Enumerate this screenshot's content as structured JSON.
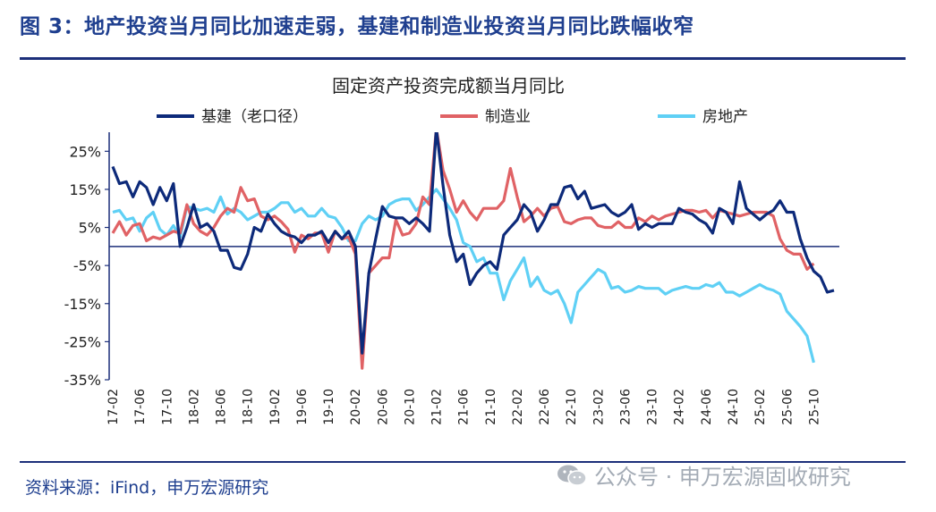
{
  "figure_title": "图 3：地产投资当月同比加速走弱，基建和制造业投资当月同比跌幅收窄",
  "source_text": "资料来源：iFind，申万宏源研究",
  "watermark_text": "公众号 · 申万宏源固收研究",
  "colors": {
    "infra": "#0d2a7a",
    "manufacturing": "#e06265",
    "realestate": "#5fd0f5",
    "accent": "#1f3f8f"
  },
  "chart_data": {
    "type": "line",
    "title": "固定资产投资完成额当月同比",
    "ylim": [
      -35,
      30
    ],
    "yticks": [
      25,
      15,
      5,
      -5,
      -15,
      -25,
      -35
    ],
    "ytick_labels": [
      "25%",
      "15%",
      "5%",
      "-5%",
      "-15%",
      "-25%",
      "-35%"
    ],
    "xtick_labels": [
      "17-02",
      "17-06",
      "17-10",
      "18-02",
      "18-06",
      "18-10",
      "19-02",
      "19-06",
      "19-10",
      "20-02",
      "20-06",
      "20-10",
      "21-02",
      "21-06",
      "21-10",
      "22-02",
      "22-06",
      "22-10",
      "23-02",
      "23-06",
      "23-10",
      "24-02",
      "24-06",
      "24-10",
      "25-02",
      "25-06",
      "25-10"
    ],
    "series": [
      {
        "name": "基建（老口径）",
        "color": "#0d2a7a",
        "values": [
          21,
          16.5,
          17,
          13,
          17,
          15.5,
          11,
          15.5,
          12,
          16.5,
          0,
          5,
          11,
          5,
          6,
          4,
          -1,
          -1,
          -5.5,
          -6,
          -2,
          5,
          4,
          8.5,
          6,
          4,
          3,
          2.5,
          1,
          3,
          3,
          4,
          1,
          4,
          2,
          4,
          0,
          -28,
          -7,
          2,
          10.5,
          8,
          7.5,
          7.5,
          6,
          7.5,
          6,
          4,
          31,
          16,
          3,
          -4,
          -2,
          -10,
          -7,
          -5,
          -4,
          -6,
          3,
          5,
          7,
          11,
          9,
          4,
          7,
          11,
          11,
          15.5,
          16,
          12.5,
          14.5,
          10,
          10.5,
          11,
          9,
          8,
          9,
          11,
          4.5,
          6,
          5,
          6,
          6,
          6,
          10,
          9,
          8.5,
          7,
          6,
          3.5,
          10,
          9,
          6,
          17,
          10,
          8.5,
          7,
          8.5,
          9.5,
          12,
          9,
          9,
          2,
          -3,
          -6.5,
          -8,
          -12,
          -11.5
        ]
      },
      {
        "name": "制造业",
        "color": "#e06265",
        "values": [
          3.5,
          6.5,
          3,
          5.5,
          6,
          1.5,
          2.5,
          2,
          3,
          4,
          3.5,
          11,
          6,
          4,
          3,
          5,
          8,
          10,
          9,
          15.5,
          12,
          12.5,
          8,
          7,
          8,
          6.5,
          4.5,
          -1.5,
          3,
          2,
          3.5,
          3.5,
          -1.5,
          4,
          2,
          2.5,
          -2,
          -32,
          -7,
          -5,
          -3,
          -3,
          7,
          3,
          3.5,
          6,
          13,
          11,
          31,
          20,
          15,
          9,
          12,
          9,
          7,
          10,
          10,
          10,
          12,
          20.5,
          13,
          6.5,
          8,
          10,
          8,
          10,
          10.5,
          6.5,
          6,
          7,
          7.5,
          7.5,
          5.5,
          5,
          5,
          6.5,
          5,
          5,
          7.5,
          6.5,
          8,
          7,
          8,
          8.5,
          9,
          9.5,
          9.5,
          9,
          9.5,
          7.5,
          9.5,
          9,
          8.5,
          8,
          8.5,
          9,
          9,
          9,
          8,
          2,
          -1,
          -2,
          -2,
          -6,
          -4.5
        ]
      },
      {
        "name": "房地产",
        "color": "#5fd0f5",
        "values": [
          9,
          9.5,
          7,
          7.5,
          4,
          7.5,
          9,
          4.5,
          3,
          5.5,
          2.5,
          10.5,
          10,
          9.5,
          10,
          9,
          13,
          8.5,
          10,
          9,
          7,
          8,
          9,
          9,
          10,
          11.5,
          11.5,
          9,
          10,
          8,
          8,
          10,
          8,
          7.5,
          5,
          1.5,
          1.5,
          6,
          8,
          7,
          8,
          11,
          12,
          12.5,
          12.5,
          9.5,
          11,
          13,
          15,
          12.5,
          10,
          7,
          1,
          0,
          -4,
          -3,
          -7,
          -7,
          -14,
          -9,
          -6,
          -3,
          -10.5,
          -8,
          -11.5,
          -12.5,
          -11.5,
          -15,
          -20,
          -12,
          -10,
          -8,
          -6,
          -7,
          -11,
          -10.5,
          -12,
          -11.5,
          -10.5,
          -11,
          -11,
          -11,
          -12.5,
          -11.5,
          -11,
          -10.5,
          -11,
          -11,
          -10,
          -10.5,
          -9.5,
          -12,
          -12,
          -13,
          -12,
          -11,
          -10,
          -11,
          -11.5,
          -12.5,
          -17,
          -19,
          -21,
          -23.5,
          -30.5
        ]
      }
    ]
  }
}
